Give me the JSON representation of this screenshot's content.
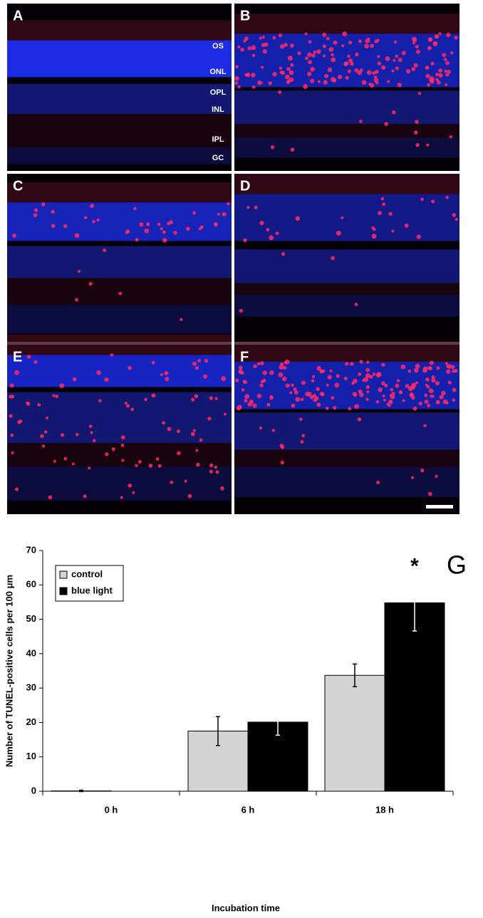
{
  "figure_panels": {
    "letters": [
      "A",
      "B",
      "C",
      "D",
      "E",
      "F"
    ],
    "layer_labels": [
      "OS",
      "ONL",
      "OPL",
      "INL",
      "IPL",
      "GC"
    ]
  },
  "chart_data": {
    "type": "bar",
    "panel_letter": "G",
    "x_label": "Incubation time",
    "y_label": "Number of TUNEL-positive cells per 100 μm",
    "categories": [
      "0 h",
      "6 h",
      "18 h"
    ],
    "series": [
      {
        "name": "control",
        "color": "#d3d3d3",
        "values": [
          0.1,
          17.5,
          33.7
        ],
        "errors": [
          0.2,
          4.2,
          3.3
        ],
        "marks": [
          null,
          null,
          null
        ]
      },
      {
        "name": "blue light",
        "color": "#000000",
        "values": [
          0,
          20.1,
          54.8
        ],
        "errors": [
          0,
          3.8,
          8.2
        ],
        "marks": [
          null,
          null,
          "*"
        ]
      }
    ],
    "ylim": [
      0,
      70
    ],
    "yticks": [
      0,
      10,
      20,
      30,
      40,
      50,
      60,
      70
    ],
    "legend": "top-left"
  }
}
